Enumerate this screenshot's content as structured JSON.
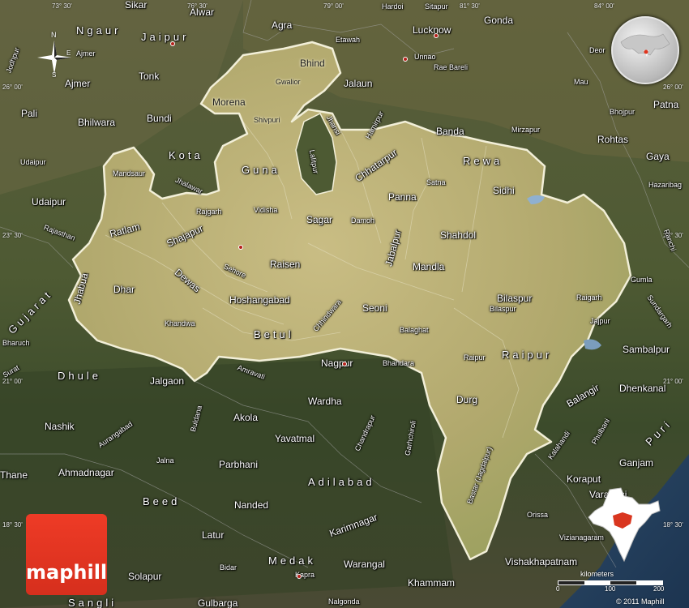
{
  "brand": {
    "logo_text": "maphill",
    "copyright": "© 2011 Maphill"
  },
  "scale": {
    "unit_label": "kilometers",
    "ticks": [
      "0",
      "100",
      "200"
    ]
  },
  "compass": {
    "north": "N",
    "south": "S",
    "east": "E"
  },
  "region_names": [
    {
      "text": "Morena",
      "size": "c"
    },
    {
      "text": "Bhind",
      "size": "c"
    },
    {
      "text": "Gwalior",
      "size": "s"
    },
    {
      "text": "Shivpuri",
      "size": "s"
    },
    {
      "text": "Guna",
      "size": "st"
    },
    {
      "text": "Lalitpur",
      "size": "s"
    },
    {
      "text": "Jhansi",
      "size": "s"
    },
    {
      "text": "Hamirpur",
      "size": "s"
    },
    {
      "text": "Chhatarpur",
      "size": "c"
    },
    {
      "text": "Rewa",
      "size": "st"
    },
    {
      "text": "Satna",
      "size": "s"
    },
    {
      "text": "Sidhi",
      "size": "c"
    },
    {
      "text": "Panna",
      "size": "c"
    },
    {
      "text": "Mandsaur",
      "size": "s"
    },
    {
      "text": "Jhalawar",
      "size": "s"
    },
    {
      "text": "Rajgarh",
      "size": "s"
    },
    {
      "text": "Vidisha",
      "size": "s"
    },
    {
      "text": "Sagar",
      "size": "c"
    },
    {
      "text": "Damoh",
      "size": "s"
    },
    {
      "text": "Ratlam",
      "size": "c"
    },
    {
      "text": "Shajapur",
      "size": "c"
    },
    {
      "text": "Shahdol",
      "size": "c"
    },
    {
      "text": "Jabalpur",
      "size": "c"
    },
    {
      "text": "Sehore",
      "size": "s"
    },
    {
      "text": "Raisen",
      "size": "c"
    },
    {
      "text": "Mandla",
      "size": "c"
    },
    {
      "text": "Dewas",
      "size": "c"
    },
    {
      "text": "Jhabua",
      "size": "c"
    },
    {
      "text": "Dhar",
      "size": "c"
    },
    {
      "text": "Hoshangabad",
      "size": "c"
    },
    {
      "text": "Seoni",
      "size": "c"
    },
    {
      "text": "Bilaspur",
      "size": "c"
    },
    {
      "text": "Bilaspur",
      "size": "s"
    },
    {
      "text": "Raigarh",
      "size": "s"
    },
    {
      "text": "Chhindwara",
      "size": "s"
    },
    {
      "text": "Khandwa",
      "size": "s"
    },
    {
      "text": "Betul",
      "size": "st"
    },
    {
      "text": "Balaghat",
      "size": "s"
    },
    {
      "text": "Raipur",
      "size": "st"
    },
    {
      "text": "Raipur",
      "size": "s"
    },
    {
      "text": "Durg",
      "size": "c"
    },
    {
      "text": "Bastar (Jagdalpur)",
      "size": "s"
    }
  ],
  "outside_names": [
    {
      "text": "Sikar",
      "size": "c"
    },
    {
      "text": "Alwar",
      "size": "c"
    },
    {
      "text": "Hardoi",
      "size": "s"
    },
    {
      "text": "Sitapur",
      "size": "s"
    },
    {
      "text": "Gonda",
      "size": "c"
    },
    {
      "text": "Ngaur",
      "size": "st"
    },
    {
      "text": "Jaipur",
      "size": "st"
    },
    {
      "text": "Agra",
      "size": "c"
    },
    {
      "text": "Etawah",
      "size": "s"
    },
    {
      "text": "Lucknow",
      "size": "c"
    },
    {
      "text": "Jodhpur",
      "size": "s"
    },
    {
      "text": "Ajmer",
      "size": "s"
    },
    {
      "text": "Unnao",
      "size": "s"
    },
    {
      "text": "Rae Bareli",
      "size": "s"
    },
    {
      "text": "Deor",
      "size": "s"
    },
    {
      "text": "Ajmer",
      "size": "c"
    },
    {
      "text": "Tonk",
      "size": "c"
    },
    {
      "text": "Jalaun",
      "size": "c"
    },
    {
      "text": "Mau",
      "size": "s"
    },
    {
      "text": "Pali",
      "size": "c"
    },
    {
      "text": "Bhilwara",
      "size": "c"
    },
    {
      "text": "Bundi",
      "size": "c"
    },
    {
      "text": "Bhojpur",
      "size": "s"
    },
    {
      "text": "Patna",
      "size": "c"
    },
    {
      "text": "Banda",
      "size": "c"
    },
    {
      "text": "Mirzapur",
      "size": "s"
    },
    {
      "text": "Kota",
      "size": "st"
    },
    {
      "text": "Rohtas",
      "size": "c"
    },
    {
      "text": "Gaya",
      "size": "c"
    },
    {
      "text": "Udaipur",
      "size": "s"
    },
    {
      "text": "Hazaribag",
      "size": "s"
    },
    {
      "text": "Udaipur",
      "size": "c"
    },
    {
      "text": "Rajasthan",
      "size": "s"
    },
    {
      "text": "Ranchi",
      "size": "s"
    },
    {
      "text": "Gujarat",
      "size": "st"
    },
    {
      "text": "Gumla",
      "size": "s"
    },
    {
      "text": "Sundargarh",
      "size": "s"
    },
    {
      "text": "Jajpur",
      "size": "s"
    },
    {
      "text": "Bharuch",
      "size": "s"
    },
    {
      "text": "Sambalpur",
      "size": "c"
    },
    {
      "text": "Nagpur",
      "size": "c"
    },
    {
      "text": "Bhandara",
      "size": "s"
    },
    {
      "text": "Amravati",
      "size": "s"
    },
    {
      "text": "Surat",
      "size": "s"
    },
    {
      "text": "Dhule",
      "size": "st"
    },
    {
      "text": "Jalgaon",
      "size": "c"
    },
    {
      "text": "Dhenkanal",
      "size": "c"
    },
    {
      "text": "Balangir",
      "size": "c"
    },
    {
      "text": "Wardha",
      "size": "c"
    },
    {
      "text": "Buldana",
      "size": "s"
    },
    {
      "text": "Akola",
      "size": "c"
    },
    {
      "text": "Chandrapur",
      "size": "s"
    },
    {
      "text": "Garhchiroli",
      "size": "s"
    },
    {
      "text": "Phulbani",
      "size": "s"
    },
    {
      "text": "Puri",
      "size": "st"
    },
    {
      "text": "Nashik",
      "size": "c"
    },
    {
      "text": "Aurangabad",
      "size": "s"
    },
    {
      "text": "Yavatmal",
      "size": "c"
    },
    {
      "text": "Kalahandi",
      "size": "s"
    },
    {
      "text": "Ganjam",
      "size": "c"
    },
    {
      "text": "Jalna",
      "size": "s"
    },
    {
      "text": "Parbhani",
      "size": "c"
    },
    {
      "text": "Thane",
      "size": "c"
    },
    {
      "text": "Ahmadnagar",
      "size": "c"
    },
    {
      "text": "Adilabad",
      "size": "st"
    },
    {
      "text": "Koraput",
      "size": "c"
    },
    {
      "text": "Beed",
      "size": "st"
    },
    {
      "text": "Varanasi",
      "size": "c"
    },
    {
      "text": "Nanded",
      "size": "c"
    },
    {
      "text": "Karimnagar",
      "size": "c"
    },
    {
      "text": "Latur",
      "size": "c"
    },
    {
      "text": "Orissa",
      "size": "s"
    },
    {
      "text": "Vizianagaram",
      "size": "s"
    },
    {
      "text": "Bidar",
      "size": "s"
    },
    {
      "text": "Medak",
      "size": "st"
    },
    {
      "text": "Warangal",
      "size": "c"
    },
    {
      "text": "Vishakhapatnam",
      "size": "c"
    },
    {
      "text": "Solapur",
      "size": "c"
    },
    {
      "text": "Kapra",
      "size": "s"
    },
    {
      "text": "Khammam",
      "size": "c"
    },
    {
      "text": "Sangli",
      "size": "st"
    },
    {
      "text": "Gulbarga",
      "size": "c"
    },
    {
      "text": "Nalgonda",
      "size": "s"
    }
  ],
  "coordinates": [
    "73° 30'",
    "76° 30'",
    "79° 00'",
    "81° 30'",
    "84° 00'",
    "26° 00'",
    "26° 00'",
    "23° 30'",
    "23° 30'",
    "21° 00'",
    "21° 00'",
    "18° 30'",
    "18° 30'"
  ],
  "colors": {
    "state_fill": "#b6ac74",
    "surroundings": "#4b5636",
    "state_border": "#f2efd8",
    "logo_red": "#e83a24",
    "inset_highlight": "#d9361f"
  },
  "icons": [
    "compass-rose-icon",
    "globe-locator-icon",
    "india-inset-icon",
    "city-dot-icon"
  ]
}
